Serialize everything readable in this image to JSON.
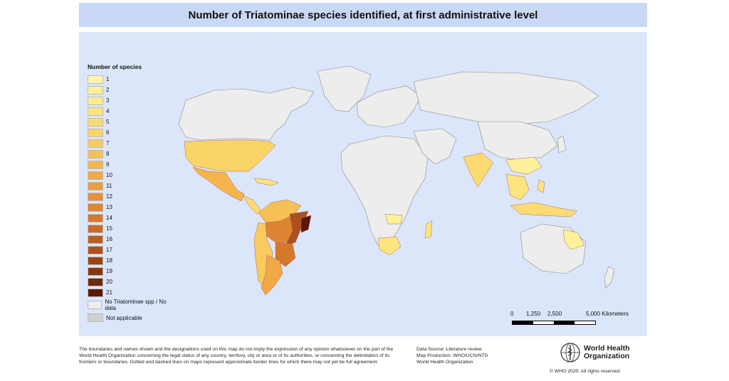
{
  "title": "Number of Triatominae species identified, at first administrative level",
  "legend": {
    "title": "Number of species",
    "classes": [
      {
        "label": "1",
        "color": "#fff6a8"
      },
      {
        "label": "2",
        "color": "#fff19a"
      },
      {
        "label": "3",
        "color": "#ffeb8c"
      },
      {
        "label": "4",
        "color": "#fde47e"
      },
      {
        "label": "5",
        "color": "#fcdc72"
      },
      {
        "label": "6",
        "color": "#fbd468"
      },
      {
        "label": "7",
        "color": "#f9cb5e"
      },
      {
        "label": "8",
        "color": "#f7c055"
      },
      {
        "label": "9",
        "color": "#f5b54c"
      },
      {
        "label": "10",
        "color": "#f1a945"
      },
      {
        "label": "11",
        "color": "#ec9d3e"
      },
      {
        "label": "12",
        "color": "#e69138"
      },
      {
        "label": "13",
        "color": "#de8532"
      },
      {
        "label": "14",
        "color": "#d4782c"
      },
      {
        "label": "15",
        "color": "#c96b26"
      },
      {
        "label": "16",
        "color": "#bc5e21"
      },
      {
        "label": "17",
        "color": "#ad511c"
      },
      {
        "label": "18",
        "color": "#9c4416"
      },
      {
        "label": "19",
        "color": "#883611"
      },
      {
        "label": "20",
        "color": "#72280b"
      },
      {
        "label": "21",
        "color": "#5a1906"
      }
    ],
    "no_data_label": "No Triatominae spp / No data",
    "no_data_color": "#ededed",
    "not_applicable_label": "Not applicable",
    "not_applicable_color": "#cfcfcf"
  },
  "scale_bar": {
    "labels": [
      "0",
      "1,250",
      "2,500",
      "5,000 Kilometers"
    ]
  },
  "disclaimer": "The boundaries and names shown and the designations used on this map do not imply the expression of any opinion whatsoever on the part of the World Health Organization concerning the legal status of any country, territory, city or area or of its authorities, or concerning the delimitation of its frontiers or boundaries. Dotted and dashed lines on maps represent approximate border lines for which there may not yet be full agreement.",
  "credits": {
    "data_source": "Data Source: Literature review",
    "map_production": "Map Production: WHO/UCN/NTD",
    "organization": "World Health Organization"
  },
  "logo_text_line1": "World Health",
  "logo_text_line2": "Organization",
  "copyright": "© WHO 2020. All rights reserved.",
  "colors": {
    "ocean": "#dce6fb",
    "title_bar": "#c9d8f5",
    "land_no_data": "#ededed"
  }
}
